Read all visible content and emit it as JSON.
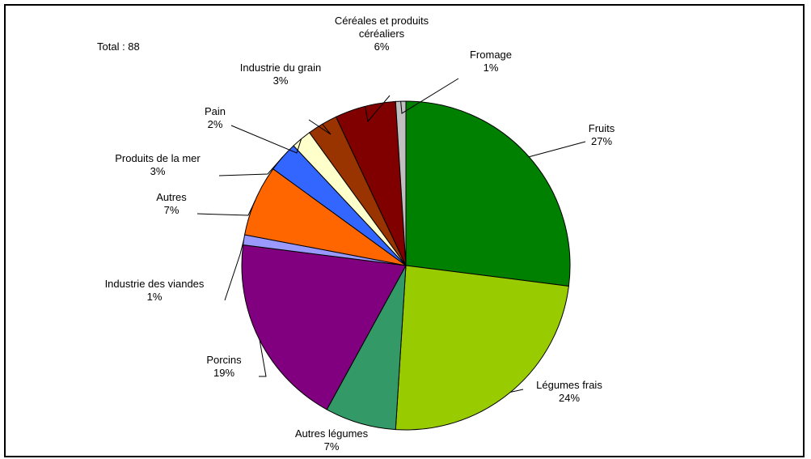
{
  "chart_data": {
    "type": "pie",
    "title": "",
    "annotation": "Total : 88",
    "start_angle_deg": 0,
    "direction": "clockwise",
    "slices": [
      {
        "name": "Fruits",
        "value": 27,
        "label": "27%",
        "color": "#008000"
      },
      {
        "name": "Légumes frais",
        "value": 24,
        "label": "24%",
        "color": "#99CC00"
      },
      {
        "name": "Autres légumes",
        "value": 7,
        "label": "7%",
        "color": "#339966"
      },
      {
        "name": "Porcins",
        "value": 19,
        "label": "19%",
        "color": "#800080"
      },
      {
        "name": "Industrie des viandes",
        "value": 1,
        "label": "1%",
        "color": "#9999FF"
      },
      {
        "name": "Autres",
        "value": 7,
        "label": "7%",
        "color": "#FF6600"
      },
      {
        "name": "Produits de la mer",
        "value": 3,
        "label": "3%",
        "color": "#3366FF"
      },
      {
        "name": "Pain",
        "value": 2,
        "label": "2%",
        "color": "#FFFFCC"
      },
      {
        "name": "Industrie du grain",
        "value": 3,
        "label": "3%",
        "color": "#993300"
      },
      {
        "name": "Céréales et produits céréaliers",
        "value": 6,
        "label": "6%",
        "color": "#800000"
      },
      {
        "name": "Fromage",
        "value": 1,
        "label": "1%",
        "color": "#C0C0C0"
      }
    ]
  }
}
